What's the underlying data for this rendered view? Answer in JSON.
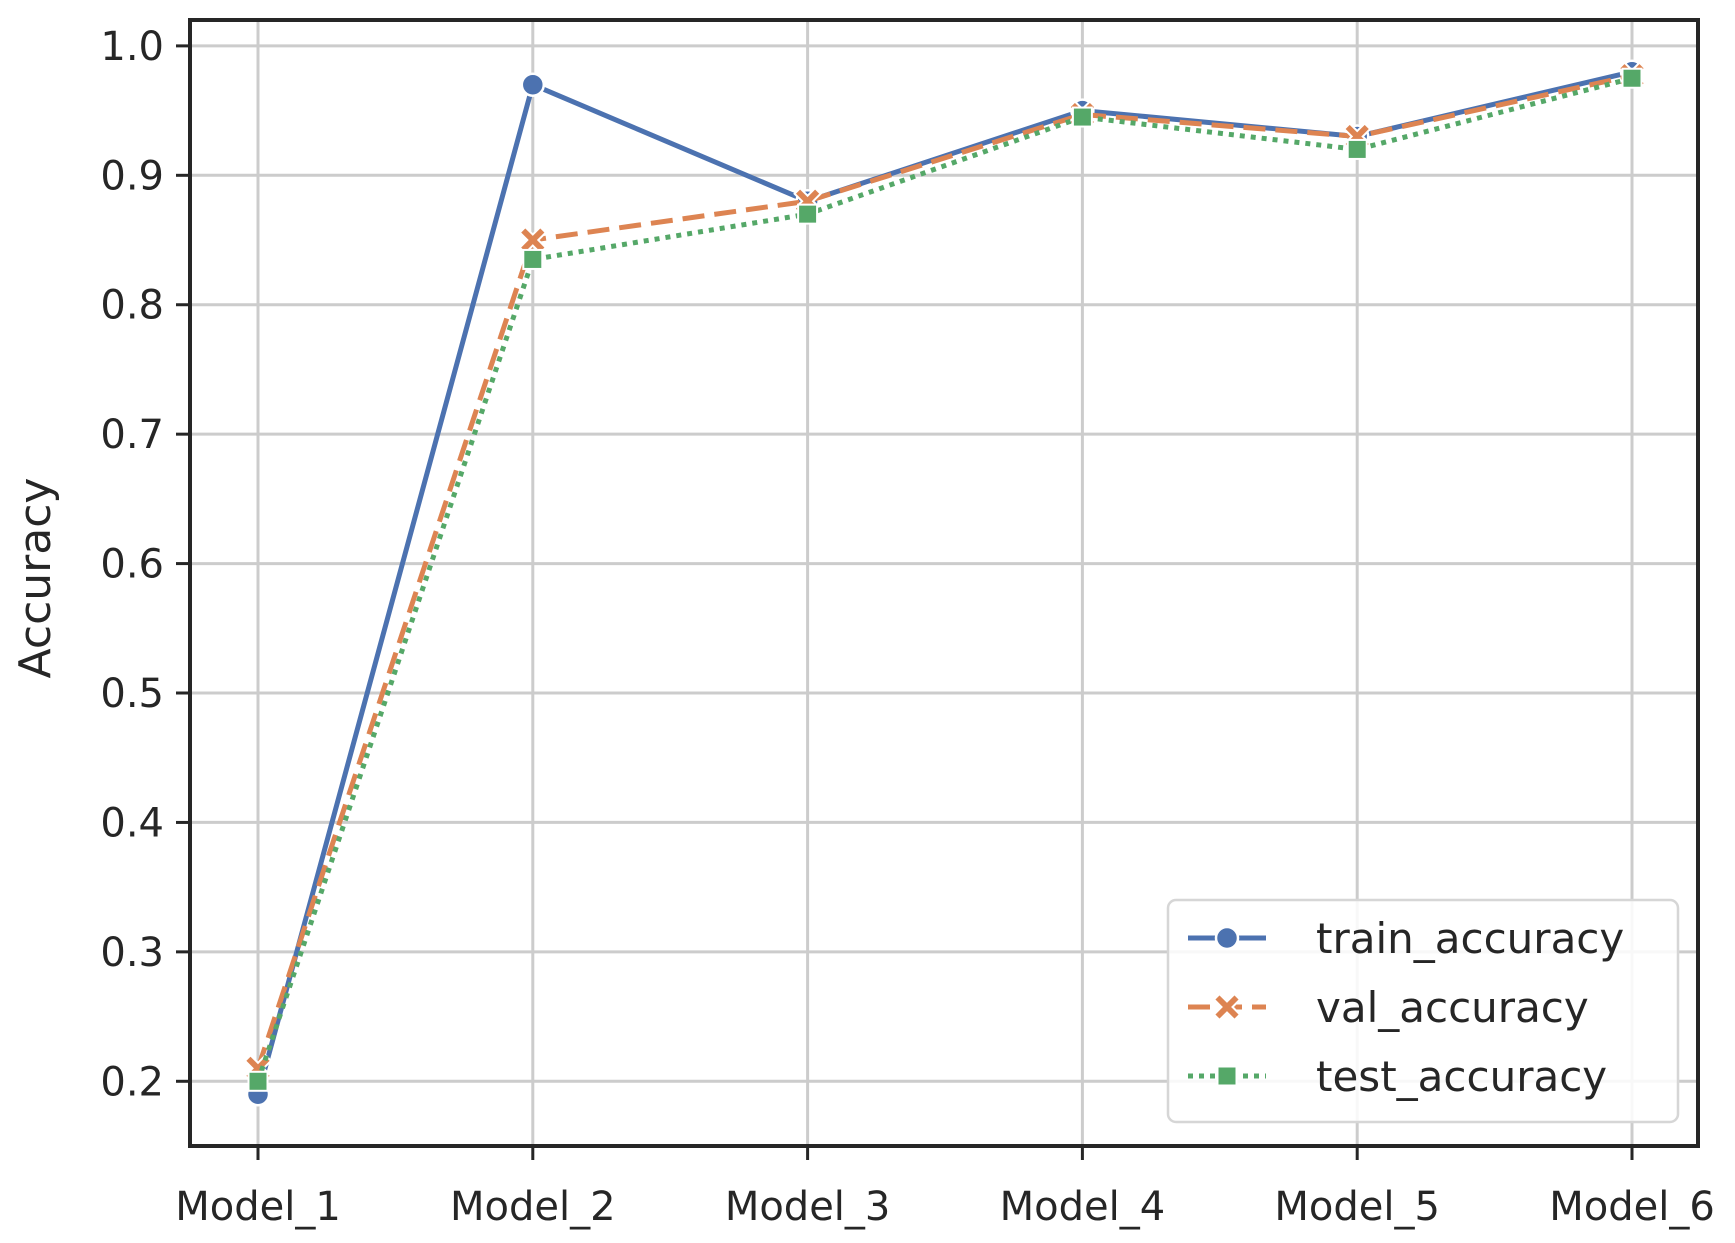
{
  "chart_data": {
    "type": "line",
    "title": "",
    "xlabel": "",
    "ylabel": "Accuracy",
    "categories": [
      "Model_1",
      "Model_2",
      "Model_3",
      "Model_4",
      "Model_5",
      "Model_6"
    ],
    "ylim": [
      0.15,
      1.02
    ],
    "yticks": [
      "0.2",
      "0.3",
      "0.4",
      "0.5",
      "0.6",
      "0.7",
      "0.8",
      "0.9",
      "1.0"
    ],
    "grid": true,
    "legend_position": "bottom-right",
    "series": [
      {
        "name": "train_accuracy",
        "values": [
          0.19,
          0.97,
          0.88,
          0.95,
          0.93,
          0.98
        ],
        "color": "#4c72b0",
        "line_style": "solid",
        "marker": "circle"
      },
      {
        "name": "val_accuracy",
        "values": [
          0.21,
          0.85,
          0.88,
          0.947,
          0.93,
          0.977
        ],
        "color": "#dd8452",
        "line_style": "dashed",
        "marker": "x"
      },
      {
        "name": "test_accuracy",
        "values": [
          0.2,
          0.835,
          0.87,
          0.945,
          0.92,
          0.975
        ],
        "color": "#55a868",
        "line_style": "dotted",
        "marker": "square"
      }
    ]
  }
}
